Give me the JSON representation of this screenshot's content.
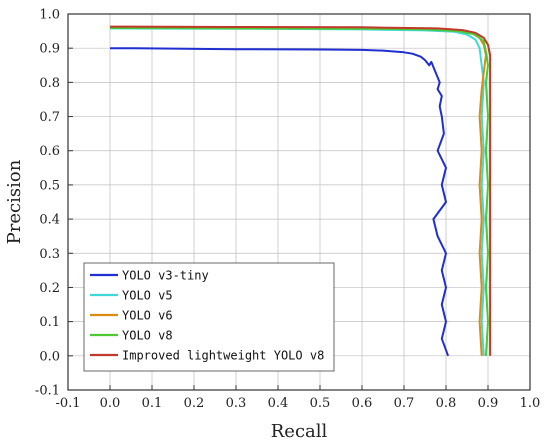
{
  "chart_data": {
    "type": "line",
    "title": "",
    "xlabel": "Recall",
    "ylabel": "Precision",
    "xlim": [
      -0.1,
      1.0
    ],
    "ylim": [
      -0.1,
      1.0
    ],
    "xticks": [
      "-0.1",
      "0.0",
      "0.1",
      "0.2",
      "0.3",
      "0.4",
      "0.5",
      "0.6",
      "0.7",
      "0.8",
      "0.9",
      "1.0"
    ],
    "yticks": [
      "-0.1",
      "0.0",
      "0.1",
      "0.2",
      "0.3",
      "0.4",
      "0.5",
      "0.6",
      "0.7",
      "0.8",
      "0.9",
      "1.0"
    ],
    "grid": true,
    "legend_position": "lower-left",
    "series": [
      {
        "name": "YOLO v3-tiny",
        "color": "#1f2fd0",
        "points": [
          [
            0.0,
            0.9
          ],
          [
            0.06,
            0.9
          ],
          [
            0.3,
            0.897
          ],
          [
            0.5,
            0.896
          ],
          [
            0.6,
            0.895
          ],
          [
            0.65,
            0.893
          ],
          [
            0.7,
            0.888
          ],
          [
            0.72,
            0.884
          ],
          [
            0.74,
            0.875
          ],
          [
            0.75,
            0.865
          ],
          [
            0.76,
            0.85
          ],
          [
            0.765,
            0.86
          ],
          [
            0.77,
            0.845
          ],
          [
            0.775,
            0.83
          ],
          [
            0.78,
            0.815
          ],
          [
            0.785,
            0.8
          ],
          [
            0.78,
            0.78
          ],
          [
            0.79,
            0.76
          ],
          [
            0.785,
            0.73
          ],
          [
            0.79,
            0.7
          ],
          [
            0.795,
            0.65
          ],
          [
            0.78,
            0.6
          ],
          [
            0.8,
            0.55
          ],
          [
            0.79,
            0.5
          ],
          [
            0.8,
            0.45
          ],
          [
            0.77,
            0.4
          ],
          [
            0.78,
            0.35
          ],
          [
            0.8,
            0.3
          ],
          [
            0.79,
            0.25
          ],
          [
            0.8,
            0.2
          ],
          [
            0.79,
            0.15
          ],
          [
            0.8,
            0.1
          ],
          [
            0.79,
            0.05
          ],
          [
            0.805,
            0.0
          ]
        ]
      },
      {
        "name": "YOLO v5",
        "color": "#40d9d9",
        "points": [
          [
            0.0,
            0.958
          ],
          [
            0.3,
            0.957
          ],
          [
            0.6,
            0.955
          ],
          [
            0.75,
            0.952
          ],
          [
            0.82,
            0.948
          ],
          [
            0.85,
            0.94
          ],
          [
            0.87,
            0.925
          ],
          [
            0.88,
            0.9
          ],
          [
            0.885,
            0.85
          ],
          [
            0.89,
            0.8
          ],
          [
            0.885,
            0.7
          ],
          [
            0.89,
            0.6
          ],
          [
            0.885,
            0.5
          ],
          [
            0.89,
            0.4
          ],
          [
            0.885,
            0.3
          ],
          [
            0.89,
            0.2
          ],
          [
            0.885,
            0.1
          ],
          [
            0.89,
            0.0
          ]
        ]
      },
      {
        "name": "YOLO v6",
        "color": "#d98c10",
        "points": [
          [
            0.0,
            0.962
          ],
          [
            0.3,
            0.961
          ],
          [
            0.6,
            0.96
          ],
          [
            0.75,
            0.957
          ],
          [
            0.82,
            0.952
          ],
          [
            0.86,
            0.945
          ],
          [
            0.88,
            0.93
          ],
          [
            0.89,
            0.91
          ],
          [
            0.895,
            0.88
          ],
          [
            0.89,
            0.83
          ],
          [
            0.885,
            0.78
          ],
          [
            0.88,
            0.7
          ],
          [
            0.885,
            0.6
          ],
          [
            0.88,
            0.5
          ],
          [
            0.885,
            0.4
          ],
          [
            0.88,
            0.3
          ],
          [
            0.885,
            0.2
          ],
          [
            0.88,
            0.1
          ],
          [
            0.885,
            0.0
          ]
        ]
      },
      {
        "name": "YOLO v8",
        "color": "#4ec934",
        "points": [
          [
            0.0,
            0.959
          ],
          [
            0.3,
            0.958
          ],
          [
            0.6,
            0.957
          ],
          [
            0.75,
            0.955
          ],
          [
            0.83,
            0.95
          ],
          [
            0.87,
            0.94
          ],
          [
            0.89,
            0.92
          ],
          [
            0.895,
            0.89
          ],
          [
            0.9,
            0.85
          ],
          [
            0.895,
            0.8
          ],
          [
            0.9,
            0.7
          ],
          [
            0.895,
            0.6
          ],
          [
            0.9,
            0.5
          ],
          [
            0.895,
            0.4
          ],
          [
            0.9,
            0.3
          ],
          [
            0.895,
            0.2
          ],
          [
            0.9,
            0.1
          ],
          [
            0.895,
            0.0
          ]
        ]
      },
      {
        "name": "Improved lightweight YOLO v8",
        "color": "#c0392b",
        "points": [
          [
            0.0,
            0.963
          ],
          [
            0.3,
            0.962
          ],
          [
            0.6,
            0.961
          ],
          [
            0.78,
            0.958
          ],
          [
            0.84,
            0.953
          ],
          [
            0.87,
            0.945
          ],
          [
            0.89,
            0.93
          ],
          [
            0.9,
            0.91
          ],
          [
            0.905,
            0.88
          ],
          [
            0.905,
            0.8
          ],
          [
            0.905,
            0.6
          ],
          [
            0.905,
            0.4
          ],
          [
            0.905,
            0.2
          ],
          [
            0.905,
            0.0
          ]
        ]
      }
    ]
  }
}
